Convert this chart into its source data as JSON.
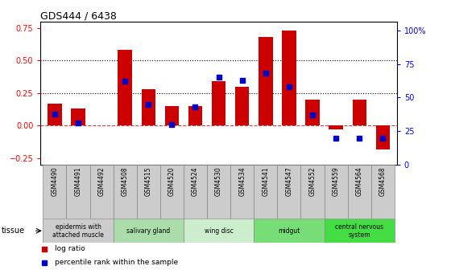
{
  "title": "GDS444 / 6438",
  "samples": [
    "GSM4490",
    "GSM4491",
    "GSM4492",
    "GSM4508",
    "GSM4515",
    "GSM4520",
    "GSM4524",
    "GSM4530",
    "GSM4534",
    "GSM4541",
    "GSM4547",
    "GSM4552",
    "GSM4559",
    "GSM4564",
    "GSM4568"
  ],
  "log_ratio": [
    0.17,
    0.13,
    0.0,
    0.58,
    0.28,
    0.15,
    0.15,
    0.34,
    0.3,
    0.68,
    0.73,
    0.2,
    -0.03,
    0.2,
    -0.18
  ],
  "percentile_pct": [
    38,
    31,
    null,
    62,
    45,
    30,
    43,
    65,
    63,
    68,
    58,
    37,
    20,
    20,
    20
  ],
  "tissue_groups": [
    {
      "label": "epidermis with\nattached muscle",
      "start": 0,
      "end": 3,
      "color": "#cccccc"
    },
    {
      "label": "salivary gland",
      "start": 3,
      "end": 6,
      "color": "#aaddaa"
    },
    {
      "label": "wing disc",
      "start": 6,
      "end": 9,
      "color": "#cceecc"
    },
    {
      "label": "midgut",
      "start": 9,
      "end": 12,
      "color": "#77dd77"
    },
    {
      "label": "central nervous\nsystem",
      "start": 12,
      "end": 15,
      "color": "#44dd44"
    }
  ],
  "bar_color": "#cc0000",
  "dot_color": "#0000cc",
  "ylim_left": [
    -0.3,
    0.8
  ],
  "ylim_right": [
    0,
    106.67
  ],
  "yticks_left": [
    -0.25,
    0.0,
    0.25,
    0.5,
    0.75
  ],
  "yticks_right_vals": [
    0,
    25,
    50,
    75,
    100
  ],
  "yticks_right_labels": [
    "0",
    "25",
    "50",
    "75",
    "100%"
  ],
  "hlines": [
    0.25,
    0.5
  ],
  "background_color": "#ffffff"
}
